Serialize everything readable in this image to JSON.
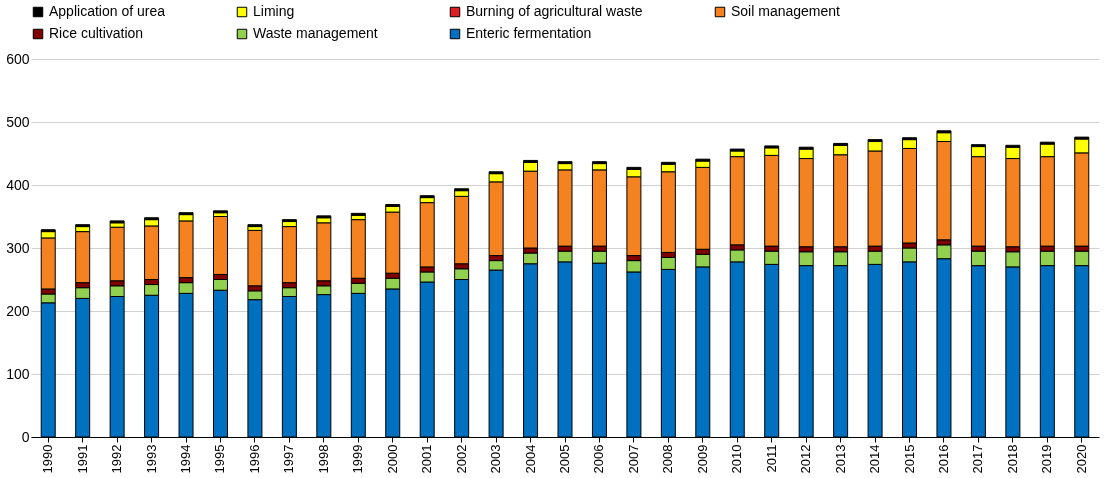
{
  "chart_data": {
    "type": "bar",
    "stacked": true,
    "categories": [
      "1990",
      "1991",
      "1992",
      "1993",
      "1994",
      "1995",
      "1996",
      "1997",
      "1998",
      "1999",
      "2000",
      "2001",
      "2002",
      "2003",
      "2004",
      "2005",
      "2006",
      "2007",
      "2008",
      "2009",
      "2010",
      "2011",
      "2012",
      "2013",
      "2014",
      "2015",
      "2016",
      "2017",
      "2018",
      "2019",
      "2020"
    ],
    "series": [
      {
        "name": "Enteric fermentation",
        "color": "#0070c0",
        "values": [
          213,
          220,
          223,
          225,
          228,
          233,
          218,
          223,
          226,
          228,
          235,
          246,
          250,
          265,
          275,
          278,
          276,
          262,
          266,
          270,
          278,
          274,
          272,
          272,
          274,
          278,
          283,
          272,
          270,
          272,
          272
        ]
      },
      {
        "name": "Waste management",
        "color": "#92d050",
        "values": [
          14,
          17,
          17,
          17,
          17,
          17,
          14,
          14,
          14,
          16,
          17,
          16,
          17,
          15,
          17,
          17,
          19,
          18,
          19,
          20,
          19,
          21,
          22,
          22,
          21,
          22,
          22,
          23,
          24,
          23,
          23
        ]
      },
      {
        "name": "Rice cultivation",
        "color": "#7f0000",
        "values": [
          8,
          8,
          8,
          8,
          8,
          8,
          8,
          8,
          8,
          8,
          8,
          8,
          8,
          8,
          8,
          8,
          8,
          8,
          8,
          8,
          8,
          8,
          8,
          8,
          8,
          8,
          8,
          8,
          8,
          8,
          8
        ]
      },
      {
        "name": "Soil management",
        "color": "#f58220",
        "values": [
          81,
          81,
          85,
          85,
          90,
          92,
          88,
          89,
          92,
          93,
          97,
          102,
          107,
          117,
          122,
          121,
          121,
          125,
          128,
          130,
          140,
          144,
          140,
          146,
          151,
          150,
          156,
          142,
          140,
          142,
          148
        ]
      },
      {
        "name": "Burning of agricultural waste",
        "color": "#e02020",
        "values": [
          null,
          null,
          null,
          null,
          null,
          null,
          null,
          null,
          null,
          null,
          null,
          null,
          null,
          null,
          null,
          null,
          null,
          null,
          null,
          null,
          null,
          null,
          null,
          null,
          null,
          null,
          null,
          null,
          null,
          null,
          null
        ]
      },
      {
        "name": "Liming",
        "color": "#ffff00",
        "values": [
          10,
          8,
          7,
          10,
          10,
          6,
          6,
          8,
          8,
          7,
          9,
          8,
          9,
          13,
          14,
          10,
          10,
          12,
          12,
          10,
          9,
          12,
          15,
          15,
          15,
          14,
          14,
          16,
          18,
          20,
          22
        ]
      },
      {
        "name": "Application of urea",
        "color": "#000000",
        "values": [
          3,
          3,
          3,
          3,
          3,
          3,
          3,
          3,
          3,
          3,
          3,
          3,
          3,
          3,
          3,
          3,
          3,
          3,
          3,
          3,
          3,
          3,
          3,
          3,
          3,
          3,
          3,
          3,
          3,
          3,
          3
        ]
      }
    ],
    "ylim": [
      0,
      600
    ],
    "yticks": [
      0,
      100,
      200,
      300,
      400,
      500,
      600
    ],
    "grid": "y",
    "legend": "top"
  }
}
